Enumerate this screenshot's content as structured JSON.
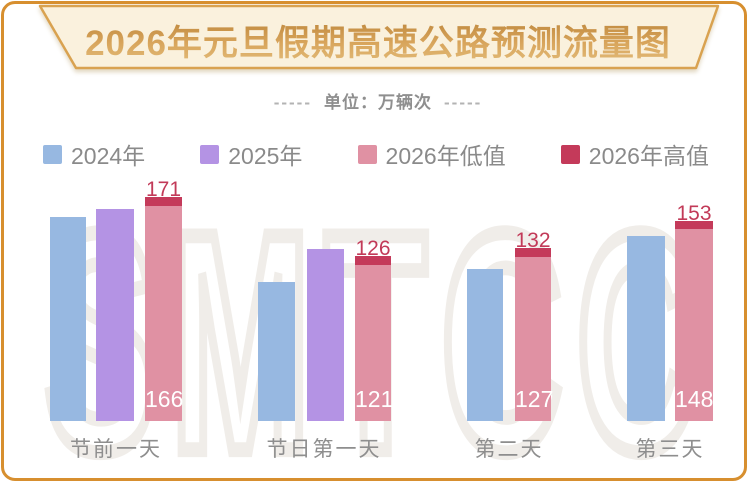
{
  "banner": {
    "title": "2026年元旦假期高速公路预测流量图"
  },
  "subtitle": {
    "dashes_left": "-----",
    "label": "单位：万辆次",
    "dashes_right": "-----"
  },
  "legend": {
    "items": [
      {
        "label": "2024年",
        "color": "#97B8E1"
      },
      {
        "label": "2025年",
        "color": "#B493E4"
      },
      {
        "label": "2026年低值",
        "color": "#E091A3"
      },
      {
        "label": "2026年高值",
        "color": "#C43A5A"
      }
    ]
  },
  "watermark": "SMTCC",
  "chart_data": {
    "type": "bar",
    "title": "2026年元旦假期高速公路预测流量图",
    "unit": "万辆次",
    "categories": [
      "节前一天",
      "节日第一天",
      "第二天",
      "第三天"
    ],
    "series": [
      {
        "name": "2024年",
        "color": "#97B8E1",
        "values": [
          156,
          106,
          116,
          141
        ],
        "value_labels_shown": false
      },
      {
        "name": "2025年",
        "color": "#B493E4",
        "values": [
          162,
          131,
          null,
          null
        ],
        "value_labels_shown": false
      },
      {
        "name": "2026年低值",
        "color": "#E091A3",
        "values": [
          166,
          121,
          127,
          148
        ],
        "value_labels_shown": true
      },
      {
        "name": "2026年高值",
        "color": "#C43A5A",
        "values": [
          171,
          126,
          132,
          153
        ],
        "value_labels_shown": true
      }
    ],
    "stacked_note_series": [
      "2026年低值",
      "2026年高值"
    ],
    "ylim": [
      0,
      180
    ],
    "grid": false,
    "legend_position": "top"
  },
  "colors": {
    "card_border": "#D78F2F",
    "banner_fill": "#FAF1DD",
    "banner_stroke": "#D9A250",
    "title_gold_dark": "#BE873C",
    "title_gold_light": "#E2BA78",
    "high_value_label": "#C23A58",
    "low_value_label": "#FFFFFF",
    "category_label": "#8E8E8E",
    "legend_text": "#8A8A8A",
    "subtitle_text": "#8F8F8F",
    "watermark": "#F0EDE9"
  }
}
